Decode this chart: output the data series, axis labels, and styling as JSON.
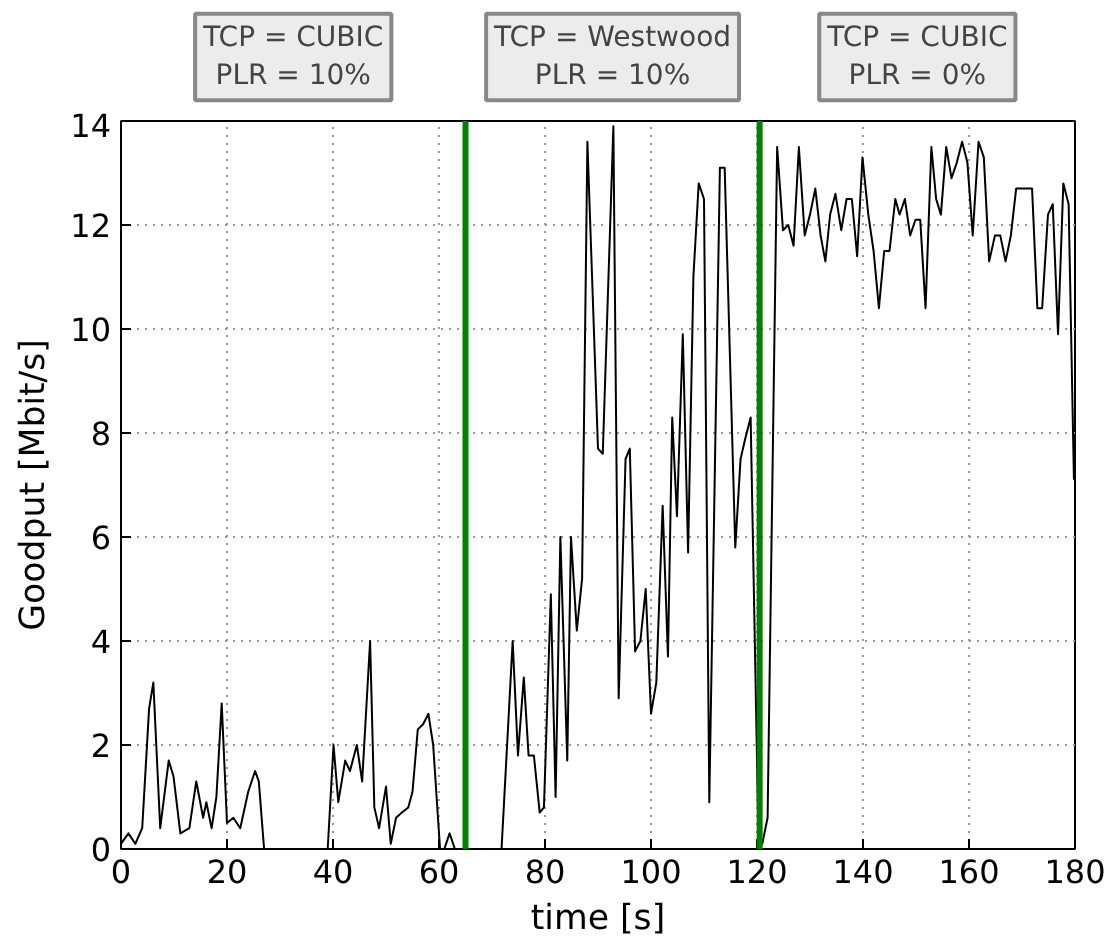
{
  "chart_data": {
    "type": "line",
    "xlabel": "time [s]",
    "ylabel": "Goodput [Mbit/s]",
    "xlim": [
      0,
      180
    ],
    "ylim": [
      0,
      14
    ],
    "xticks": [
      0,
      20,
      40,
      60,
      80,
      100,
      120,
      140,
      160,
      180
    ],
    "yticks": [
      0,
      2,
      4,
      6,
      8,
      10,
      12,
      14
    ],
    "grid": true,
    "marker": "none",
    "line_style": "solid",
    "series": [
      {
        "color": "#000000",
        "x": [
          0,
          1.4,
          2.7,
          4,
          5.3,
          6.1,
          7.4,
          9,
          9.9,
          11.2,
          12.9,
          14.2,
          15.5,
          16.1,
          17.1,
          18,
          19,
          20,
          21.2,
          22.5,
          24,
          25.3,
          26,
          27,
          39,
          40.1,
          41,
          42.3,
          43.2,
          44.5,
          45.5,
          47,
          47.8,
          48.7,
          50,
          50.9,
          51.9,
          53,
          54.2,
          55,
          56,
          57,
          58,
          58.9,
          60.2,
          61,
          62,
          63,
          71.8,
          73.9,
          74.9,
          76,
          76.9,
          77.9,
          79,
          79.8,
          81.1,
          82,
          82.9,
          84.2,
          84.9,
          86,
          87,
          88,
          90,
          90.9,
          92.9,
          93.9,
          95.2,
          96,
          97,
          98,
          99,
          100,
          101,
          102.2,
          103.2,
          104,
          104.9,
          106,
          107,
          108,
          109,
          110,
          111,
          113,
          113.9,
          115.9,
          116.9,
          117.8,
          118.8,
          120.3,
          121,
          122,
          123.8,
          124.9,
          125.9,
          126.9,
          127.9,
          129,
          130,
          131,
          132,
          132.9,
          133.8,
          134.8,
          135.9,
          136.9,
          137.9,
          138.9,
          139.9,
          141,
          142,
          143,
          144,
          145,
          146.1,
          146.9,
          147.9,
          148.9,
          149.9,
          150.8,
          151.8,
          152.9,
          153.8,
          154.7,
          155.7,
          156.7,
          157.7,
          158.7,
          159.7,
          160.7,
          161.8,
          162.8,
          163.8,
          164.9,
          165.9,
          166.9,
          167.9,
          168.9,
          169.9,
          170.9,
          171.9,
          172.9,
          173.8,
          174.9,
          175.8,
          176.8,
          177.8,
          178.8,
          179.8
        ],
        "values": [
          0.1,
          0.3,
          0.1,
          0.4,
          2.7,
          3.2,
          0.4,
          1.7,
          1.4,
          0.3,
          0.4,
          1.3,
          0.6,
          0.9,
          0.4,
          1.0,
          2.8,
          0.5,
          0.6,
          0.4,
          1.1,
          1.5,
          1.3,
          0,
          0,
          2.0,
          0.9,
          1.7,
          1.5,
          2.0,
          1.3,
          4.0,
          0.8,
          0.4,
          1.2,
          0.1,
          0.6,
          0.7,
          0.8,
          1.1,
          2.3,
          2.4,
          2.6,
          2.0,
          0,
          0,
          0.3,
          0,
          0,
          4.0,
          1.8,
          3.3,
          1.8,
          1.8,
          0.7,
          0.8,
          4.9,
          1.0,
          6.0,
          1.7,
          6.0,
          4.2,
          5.2,
          13.6,
          7.7,
          7.6,
          13.9,
          2.9,
          7.5,
          7.7,
          3.8,
          4.0,
          5.0,
          2.6,
          3.2,
          6.6,
          3.7,
          8.3,
          6.4,
          9.9,
          5.7,
          11.0,
          12.8,
          12.5,
          0.9,
          13.1,
          13.1,
          5.8,
          7.5,
          7.9,
          8.3,
          0.1,
          0.1,
          0.6,
          13.5,
          11.9,
          12.0,
          11.6,
          13.5,
          11.8,
          12.2,
          12.7,
          11.8,
          11.3,
          12.2,
          12.6,
          11.9,
          12.5,
          12.5,
          11.4,
          13.3,
          12.2,
          11.5,
          10.4,
          11.5,
          11.5,
          12.5,
          12.2,
          12.5,
          11.8,
          12.1,
          12.1,
          10.4,
          13.5,
          12.5,
          12.2,
          13.5,
          12.9,
          13.2,
          13.6,
          13.2,
          11.8,
          13.6,
          13.3,
          11.3,
          11.8,
          11.8,
          11.3,
          11.8,
          12.7,
          12.7,
          12.7,
          12.7,
          10.4,
          10.4,
          12.2,
          12.4,
          9.9,
          12.8,
          12.4,
          7.1
        ]
      }
    ],
    "ref_lines": [
      {
        "axis": "x",
        "value": 65,
        "color": "#008000"
      },
      {
        "axis": "x",
        "value": 120.5,
        "color": "#008000"
      }
    ],
    "annotations": [
      "TCP = CUBIC\nPLR = 10%",
      "TCP = Westwood\nPLR = 10%",
      "TCP = CUBIC\nPLR = 0%"
    ]
  }
}
